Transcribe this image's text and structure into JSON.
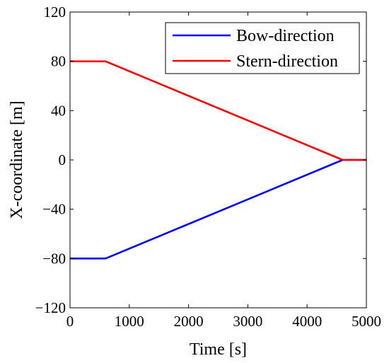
{
  "chart_data": {
    "type": "line",
    "xlabel": "Time [s]",
    "ylabel": "X-coordinate [m]",
    "xlim": [
      0,
      5000
    ],
    "ylim": [
      -120,
      120
    ],
    "xticks": [
      "0",
      "1000",
      "2000",
      "3000",
      "4000",
      "5000"
    ],
    "yticks": [
      "120",
      "80",
      "40",
      "0",
      "−40",
      "−80",
      "−120"
    ],
    "grid": false,
    "legend_position": "top-right",
    "series": [
      {
        "name": "Bow-direction",
        "color": "#0000ff",
        "x": [
          0,
          600,
          4600,
          5000
        ],
        "y": [
          -80,
          -80,
          0,
          0
        ]
      },
      {
        "name": "Stern-direction",
        "color": "#ff0000",
        "x": [
          0,
          600,
          4600,
          5000
        ],
        "y": [
          80,
          80,
          0,
          0
        ]
      }
    ]
  }
}
